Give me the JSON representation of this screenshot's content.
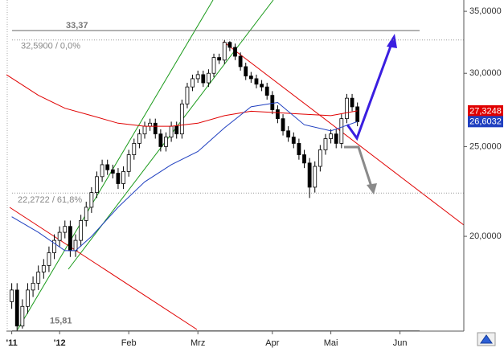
{
  "chart_data": {
    "type": "candlestick",
    "log_scale": true,
    "ylim": [
      15.8,
      36
    ],
    "yticks": [
      {
        "value": 20,
        "label": "20,0000"
      },
      {
        "value": 25,
        "label": "25,0000"
      },
      {
        "value": 30,
        "label": "30,0000"
      },
      {
        "value": 35,
        "label": "35,0000"
      }
    ],
    "xlim": [
      -1,
      85
    ],
    "xticks": [
      {
        "value": 0,
        "label": "'11"
      },
      {
        "value": 9,
        "label": "'12"
      },
      {
        "value": 22,
        "label": "Feb"
      },
      {
        "value": 35,
        "label": "Mrz"
      },
      {
        "value": 49,
        "label": "Apr"
      },
      {
        "value": 60,
        "label": "Mai"
      },
      {
        "value": 73,
        "label": "Jun"
      }
    ],
    "x": [
      0,
      1,
      2,
      3,
      4,
      5,
      6,
      7,
      8,
      9,
      10,
      11,
      12,
      13,
      14,
      15,
      16,
      17,
      18,
      19,
      20,
      21,
      22,
      23,
      24,
      25,
      26,
      27,
      28,
      29,
      30,
      31,
      32,
      33,
      34,
      35,
      36,
      37,
      38,
      39,
      40,
      41,
      42,
      43,
      44,
      45,
      46,
      47,
      48,
      49,
      50,
      51,
      52,
      53,
      54,
      55,
      56,
      57,
      58,
      59,
      60,
      61,
      62,
      63,
      64,
      65
    ],
    "open": [
      17.0,
      17.5,
      16.0,
      16.8,
      17.5,
      17.8,
      18.3,
      18.6,
      19.2,
      19.8,
      20.2,
      20.5,
      19.3,
      19.8,
      20.8,
      21.5,
      22.3,
      23.2,
      23.9,
      23.6,
      23.4,
      22.8,
      23.5,
      24.5,
      25.2,
      25.8,
      26.3,
      26.5,
      25.8,
      25.0,
      25.6,
      26.3,
      25.8,
      27.8,
      29.0,
      29.6,
      29.9,
      29.3,
      30.0,
      31.2,
      31.0,
      32.4,
      32.0,
      31.3,
      30.5,
      29.8,
      29.6,
      29.2,
      29.0,
      28.4,
      27.4,
      26.8,
      26.0,
      25.6,
      25.2,
      24.5,
      24.0,
      22.6,
      23.8,
      24.8,
      25.5,
      25.8,
      25.2,
      26.8,
      28.2,
      27.6
    ],
    "high": [
      17.8,
      17.8,
      17.1,
      17.8,
      18.1,
      18.6,
      18.9,
      19.5,
      20.1,
      20.5,
      20.8,
      20.8,
      20.1,
      21.1,
      21.8,
      22.6,
      23.5,
      24.2,
      24.2,
      23.9,
      23.7,
      23.8,
      24.8,
      25.5,
      26.1,
      26.6,
      26.8,
      26.8,
      26.1,
      25.9,
      26.6,
      26.6,
      28.1,
      29.3,
      29.9,
      30.2,
      30.2,
      30.3,
      31.5,
      31.5,
      32.59,
      32.5,
      32.3,
      31.6,
      30.8,
      30.1,
      29.9,
      29.5,
      29.3,
      28.7,
      27.7,
      27.1,
      26.3,
      25.9,
      25.5,
      24.8,
      24.3,
      24.1,
      25.1,
      25.8,
      26.1,
      26.1,
      27.1,
      28.5,
      28.5,
      27.9
    ],
    "low": [
      16.7,
      15.81,
      15.9,
      16.5,
      17.2,
      17.5,
      18.0,
      18.3,
      18.9,
      19.5,
      19.9,
      19.0,
      19.0,
      19.5,
      20.5,
      21.2,
      22.0,
      22.9,
      23.3,
      23.1,
      22.5,
      22.5,
      23.2,
      24.2,
      24.9,
      25.5,
      26.0,
      25.5,
      24.7,
      24.7,
      25.3,
      25.5,
      25.5,
      27.5,
      28.7,
      29.3,
      29.0,
      29.0,
      29.7,
      30.7,
      30.7,
      31.7,
      31.0,
      30.2,
      29.5,
      29.3,
      28.9,
      28.7,
      28.1,
      27.1,
      26.5,
      25.7,
      25.3,
      24.9,
      24.2,
      23.7,
      22.0,
      22.3,
      23.5,
      24.5,
      25.2,
      24.9,
      24.9,
      26.5,
      27.3,
      26.3
    ],
    "close": [
      17.5,
      16.0,
      16.8,
      17.5,
      17.8,
      18.3,
      18.6,
      19.2,
      19.8,
      20.2,
      20.5,
      19.3,
      19.8,
      20.8,
      21.5,
      22.3,
      23.2,
      23.9,
      23.6,
      23.4,
      22.8,
      23.5,
      24.5,
      25.2,
      25.8,
      26.3,
      26.5,
      25.8,
      25.0,
      25.6,
      26.3,
      25.8,
      27.8,
      29.0,
      29.6,
      29.9,
      29.3,
      30.0,
      31.2,
      31.0,
      32.4,
      32.0,
      31.3,
      30.5,
      29.8,
      29.6,
      29.2,
      29.0,
      28.4,
      27.4,
      26.8,
      26.0,
      25.6,
      25.2,
      24.5,
      24.0,
      22.6,
      23.8,
      24.8,
      25.5,
      25.8,
      25.2,
      26.8,
      28.2,
      27.6,
      26.6
    ],
    "up_color": "#ffffff",
    "down_color": "#000000",
    "lines": [
      {
        "color": "#e00000",
        "x": [
          -1,
          5,
          10,
          15,
          20,
          25,
          30,
          35,
          40,
          45,
          50,
          55,
          60,
          65
        ],
        "values": [
          29.9,
          28.4,
          27.5,
          27.0,
          26.5,
          26.3,
          26.3,
          26.5,
          27.0,
          27.3,
          27.2,
          27.1,
          27.0,
          27.3248
        ]
      },
      {
        "color": "#2040c0",
        "x": [
          0,
          5,
          10,
          12,
          15,
          20,
          25,
          30,
          35,
          40,
          45,
          50,
          55,
          60,
          65
        ],
        "values": [
          21.0,
          20.2,
          19.3,
          19.3,
          20.0,
          21.5,
          22.9,
          23.9,
          24.7,
          26.2,
          27.6,
          27.9,
          26.4,
          26.0,
          26.6032
        ]
      }
    ],
    "price_tags": [
      {
        "value": 27.3248,
        "label": "27,3248",
        "color": "#e00000"
      },
      {
        "value": 26.6032,
        "label": "26,6032",
        "color": "#2040c0"
      }
    ],
    "levels": [
      {
        "value": 33.37,
        "label": "33,37",
        "dashed": false
      },
      {
        "value": 32.59,
        "label": "32,5900 / 0,0%",
        "dashed": true
      },
      {
        "value": 22.2722,
        "label": "22,2722 / 61,8%",
        "dashed": true
      },
      {
        "value": 15.81,
        "label": "15,81",
        "dashed": false
      }
    ]
  }
}
